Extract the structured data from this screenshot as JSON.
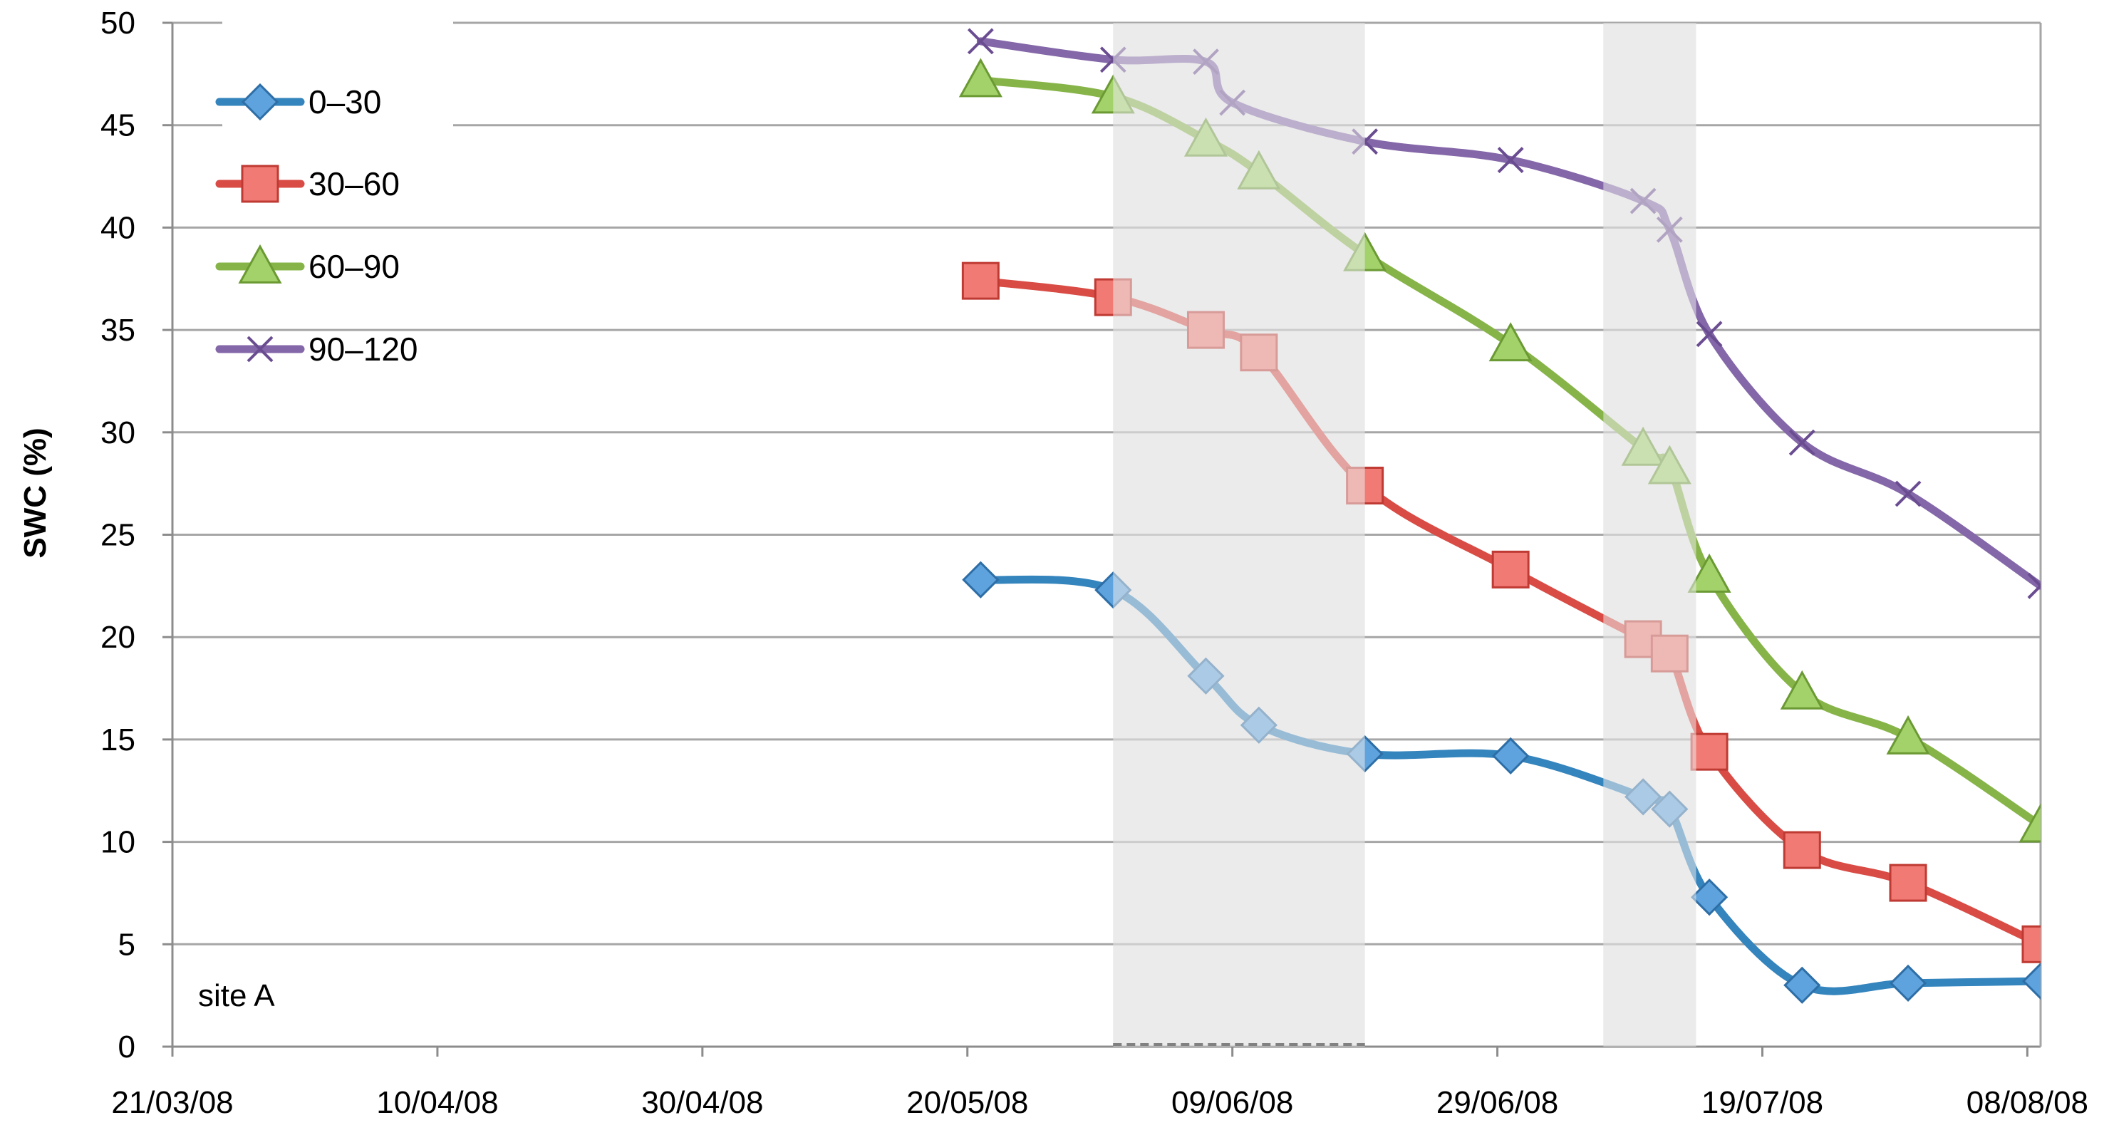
{
  "chart_data": {
    "type": "line",
    "title": "",
    "xlabel": "",
    "ylabel": "SWC (%)",
    "ylim": [
      0,
      50
    ],
    "yticks": [
      "0",
      "5",
      "10",
      "15",
      "20",
      "25",
      "30",
      "35",
      "40",
      "45",
      "50"
    ],
    "x_axis_type": "date",
    "xlim": [
      "2008-03-21",
      "2008-08-09"
    ],
    "xticks": [
      {
        "date": "2008-03-21",
        "label": "21/03/08"
      },
      {
        "date": "2008-04-10",
        "label": "10/04/08"
      },
      {
        "date": "2008-04-30",
        "label": "30/04/08"
      },
      {
        "date": "2008-05-20",
        "label": "20/05/08"
      },
      {
        "date": "2008-06-09",
        "label": "09/06/08"
      },
      {
        "date": "2008-06-29",
        "label": "29/06/08"
      },
      {
        "date": "2008-07-19",
        "label": "19/07/08"
      },
      {
        "date": "2008-08-08",
        "label": "08/08/08"
      }
    ],
    "grid": "horizontal",
    "legend_position": "top-left",
    "annotation": "site A",
    "shaded_periods": [
      {
        "start": "2008-05-31",
        "end": "2008-06-19"
      },
      {
        "start": "2008-07-07",
        "end": "2008-07-14"
      }
    ],
    "dashed_period": {
      "start": "2008-05-31",
      "end": "2008-06-19"
    },
    "series": [
      {
        "name": "0–30",
        "color": "#3484bd",
        "marker": "diamond",
        "points": [
          {
            "x": "2008-05-21",
            "y": 22.8
          },
          {
            "x": "2008-05-31",
            "y": 22.3
          },
          {
            "x": "2008-06-07",
            "y": 18.1
          },
          {
            "x": "2008-06-11",
            "y": 15.7
          },
          {
            "x": "2008-06-19",
            "y": 14.3
          },
          {
            "x": "2008-06-30",
            "y": 14.2
          },
          {
            "x": "2008-07-10",
            "y": 12.2
          },
          {
            "x": "2008-07-12",
            "y": 11.6
          },
          {
            "x": "2008-07-15",
            "y": 7.3
          },
          {
            "x": "2008-07-22",
            "y": 3.0
          },
          {
            "x": "2008-07-30",
            "y": 3.1
          },
          {
            "x": "2008-08-09",
            "y": 3.2
          }
        ]
      },
      {
        "name": "30–60",
        "color": "#d94c45",
        "marker": "square",
        "points": [
          {
            "x": "2008-05-21",
            "y": 37.4
          },
          {
            "x": "2008-05-31",
            "y": 36.6
          },
          {
            "x": "2008-06-07",
            "y": 35.0
          },
          {
            "x": "2008-06-11",
            "y": 33.9
          },
          {
            "x": "2008-06-19",
            "y": 27.4
          },
          {
            "x": "2008-06-30",
            "y": 23.3
          },
          {
            "x": "2008-07-10",
            "y": 19.9
          },
          {
            "x": "2008-07-12",
            "y": 19.2
          },
          {
            "x": "2008-07-15",
            "y": 14.4
          },
          {
            "x": "2008-07-22",
            "y": 9.6
          },
          {
            "x": "2008-07-30",
            "y": 8.0
          },
          {
            "x": "2008-08-09",
            "y": 5.0
          }
        ]
      },
      {
        "name": "60–90",
        "color": "#87b448",
        "marker": "triangle",
        "points": [
          {
            "x": "2008-05-21",
            "y": 47.2
          },
          {
            "x": "2008-05-31",
            "y": 46.4
          },
          {
            "x": "2008-06-07",
            "y": 44.3
          },
          {
            "x": "2008-06-11",
            "y": 42.7
          },
          {
            "x": "2008-06-19",
            "y": 38.7
          },
          {
            "x": "2008-06-30",
            "y": 34.3
          },
          {
            "x": "2008-07-10",
            "y": 29.2
          },
          {
            "x": "2008-07-12",
            "y": 28.3
          },
          {
            "x": "2008-07-15",
            "y": 23.0
          },
          {
            "x": "2008-07-22",
            "y": 17.3
          },
          {
            "x": "2008-07-30",
            "y": 15.1
          },
          {
            "x": "2008-08-09",
            "y": 10.8
          }
        ]
      },
      {
        "name": "90–120",
        "color": "#8467a8",
        "marker": "x",
        "points": [
          {
            "x": "2008-05-21",
            "y": 49.1
          },
          {
            "x": "2008-05-31",
            "y": 48.2
          },
          {
            "x": "2008-06-07",
            "y": 48.1
          },
          {
            "x": "2008-06-09",
            "y": 46.1
          },
          {
            "x": "2008-06-19",
            "y": 44.2
          },
          {
            "x": "2008-06-30",
            "y": 43.3
          },
          {
            "x": "2008-07-10",
            "y": 41.3
          },
          {
            "x": "2008-07-12",
            "y": 39.9
          },
          {
            "x": "2008-07-15",
            "y": 34.8
          },
          {
            "x": "2008-07-22",
            "y": 29.5
          },
          {
            "x": "2008-07-30",
            "y": 27.0
          },
          {
            "x": "2008-08-09",
            "y": 22.5
          }
        ]
      }
    ]
  }
}
